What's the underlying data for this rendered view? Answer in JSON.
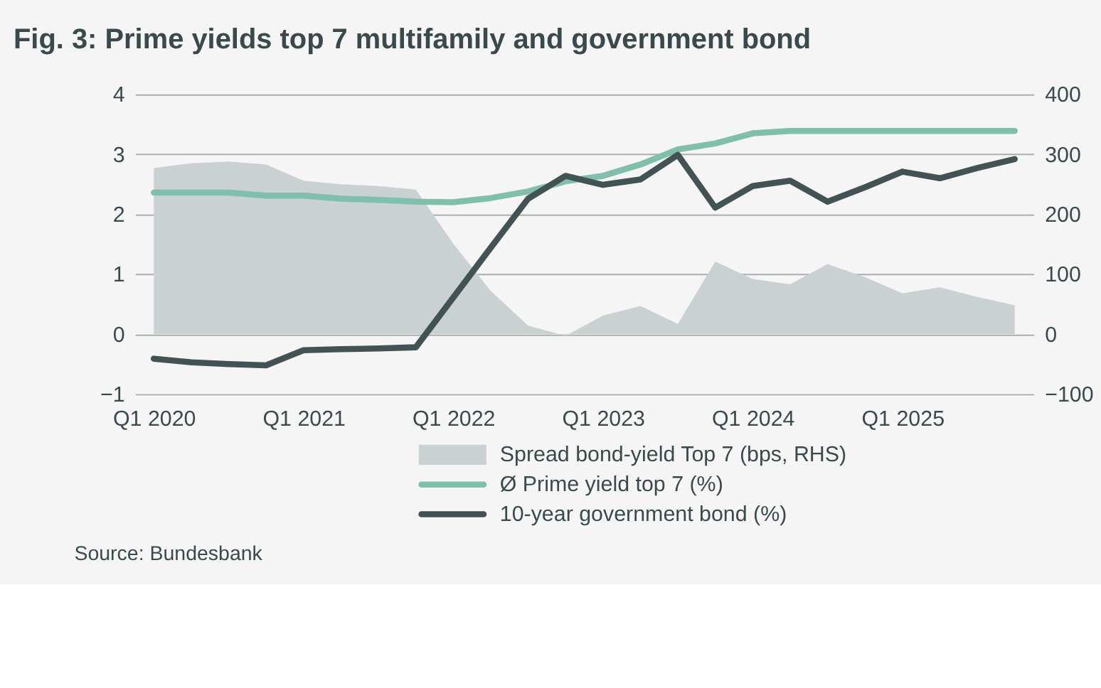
{
  "chart_data": {
    "type": "line",
    "title": "Fig. 3: Prime yields top 7 multifamily and government bond",
    "categories": [
      "Q1 2020",
      null,
      null,
      null,
      "Q1 2021",
      null,
      null,
      null,
      "Q1 2022",
      null,
      null,
      null,
      "Q1 2023",
      null,
      null,
      null,
      "Q1 2024",
      null,
      null,
      null,
      "Q1 2025",
      null,
      null,
      null
    ],
    "series": [
      {
        "name": "Spread bond-yield Top 7 (bps, RHS)",
        "type": "area",
        "axis": "y2",
        "color": "#c9d1d2",
        "values": [
          277,
          285,
          288,
          283,
          256,
          250,
          247,
          241,
          151,
          72,
          14,
          -3,
          31,
          47,
          17,
          121,
          92,
          83,
          117,
          95,
          68,
          78,
          62,
          48
        ]
      },
      {
        "name": "Ø Prime yield top 7 (%)",
        "color": "#80bfac",
        "values": [
          2.36,
          2.36,
          2.36,
          2.31,
          2.31,
          2.26,
          2.24,
          2.21,
          2.2,
          2.27,
          2.38,
          2.55,
          2.64,
          2.83,
          3.08,
          3.18,
          3.35,
          3.39,
          3.39,
          3.39,
          3.39,
          3.39,
          3.39,
          3.39
        ]
      },
      {
        "name": "10-year government bond (%)",
        "color": "#435254",
        "values": [
          -0.41,
          -0.47,
          -0.5,
          -0.52,
          -0.27,
          -0.25,
          -0.24,
          -0.22,
          0.61,
          1.44,
          2.26,
          2.64,
          2.49,
          2.58,
          2.99,
          2.11,
          2.47,
          2.56,
          2.21,
          2.45,
          2.71,
          2.6,
          2.77,
          2.92
        ]
      }
    ],
    "ylim": [
      -1,
      4
    ],
    "yticks": [
      -1,
      0,
      1,
      2,
      3,
      4
    ],
    "y2lim": [
      -100,
      400
    ],
    "y2ticks": [
      -100,
      0,
      100,
      200,
      300,
      400
    ],
    "grid": "y",
    "legend": "bottom",
    "marker": "none",
    "line_style": "solid",
    "annotations": [
      "Source: Bundesbank"
    ]
  }
}
